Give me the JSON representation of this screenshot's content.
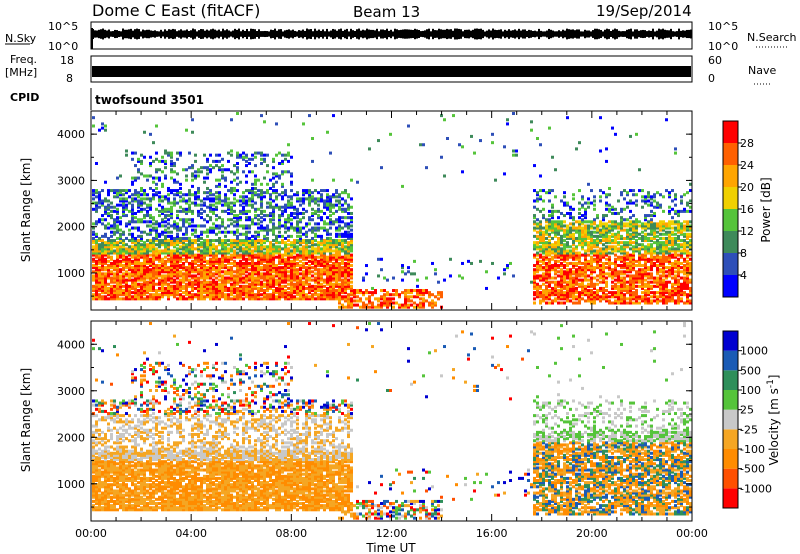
{
  "header": {
    "station": "Dome C East (fitACF)",
    "beam": "Beam 13",
    "date": "19/Sep/2014"
  },
  "summary_panels": {
    "nsky_label": "N.Sky",
    "nsky_ticks": [
      "10^5",
      "10^0"
    ],
    "nsearch_label": "N.Search",
    "nsearch_ticks": [
      "10^5",
      "10^0"
    ],
    "freq_label": "Freq.",
    "freq_unit": "[MHz]",
    "freq_ticks": [
      "18",
      "8"
    ],
    "nave_label": "Nave",
    "nave_ticks": [
      "60",
      "0"
    ],
    "cpid_label": "CPID",
    "cpid_value": "twofsound 3501"
  },
  "colors": {
    "power_scale": [
      "#0000ff",
      "#2e4fb8",
      "#3e8a5a",
      "#55c43a",
      "#f0d000",
      "#ffa500",
      "#ff6000",
      "#ff0000"
    ],
    "velocity_scale": [
      "#ff0000",
      "#ff5000",
      "#ff8c00",
      "#f5a623",
      "#c8c8c8",
      "#55c43a",
      "#2e8f5a",
      "#1a5bb5",
      "#0000d0"
    ]
  },
  "chart_data": [
    {
      "type": "heatmap",
      "panel": "power",
      "ylabel": "Slant Range [km]",
      "yticks": [
        "1000",
        "2000",
        "3000",
        "4000"
      ],
      "ylim": [
        200,
        4500
      ],
      "xticks": [
        "00:00",
        "04:00",
        "08:00",
        "12:00",
        "16:00",
        "20:00",
        "00:00"
      ],
      "xlim": [
        0,
        24
      ],
      "colorbar_label": "Power [dB]",
      "colorbar_ticks": [
        "4",
        "8",
        "12",
        "16",
        "20",
        "24",
        "28"
      ],
      "colorbar_range": [
        0,
        32
      ]
    },
    {
      "type": "heatmap",
      "panel": "velocity",
      "ylabel": "Slant Range [km]",
      "yticks": [
        "1000",
        "2000",
        "3000",
        "4000"
      ],
      "ylim": [
        200,
        4500
      ],
      "xticks": [
        "00:00",
        "04:00",
        "08:00",
        "12:00",
        "16:00",
        "20:00",
        "00:00"
      ],
      "xlabel": "Time UT",
      "xlim": [
        0,
        24
      ],
      "colorbar_label": "Velocity [m s^-1]",
      "colorbar_ticks": [
        "-1000",
        "-500",
        "-100",
        "-25",
        "25",
        "100",
        "500",
        "1000"
      ]
    }
  ]
}
